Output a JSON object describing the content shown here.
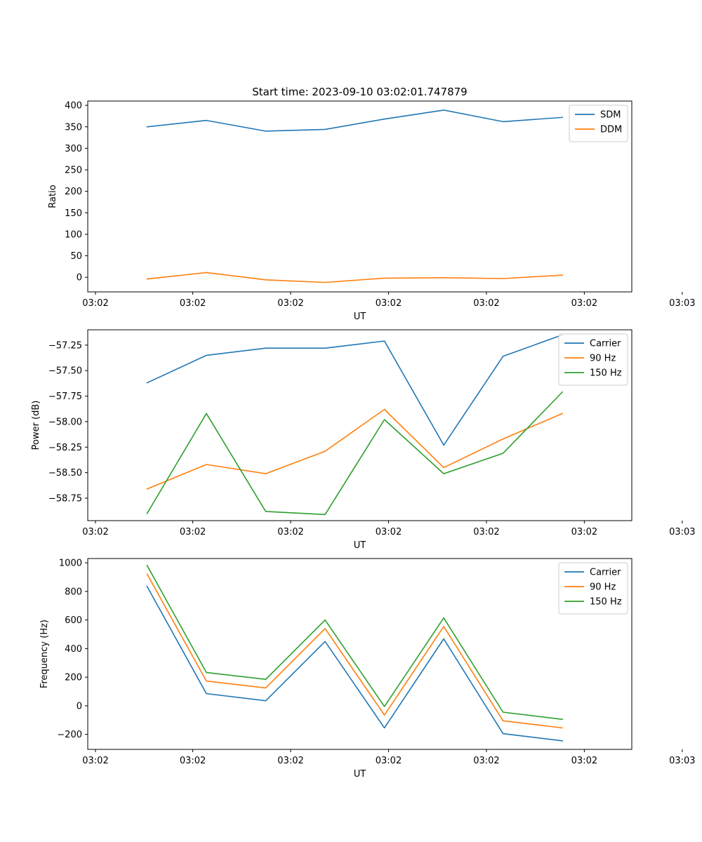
{
  "chart_data": [
    {
      "type": "line",
      "title": "Start time: 2023-09-10 03:02:01.747879",
      "xlabel": "UT",
      "ylabel": "Ratio",
      "xlim": [
        0,
        9.17
      ],
      "ylim": [
        -34,
        410
      ],
      "x": [
        1,
        2,
        3,
        4,
        5,
        6,
        7,
        8
      ],
      "xticks": [
        0.13,
        1.77,
        3.42,
        5.07,
        6.72,
        8.37,
        10.02
      ],
      "xtick_labels": [
        "03:02",
        "03:02",
        "03:02",
        "03:02",
        "03:02",
        "03:02",
        "03:03"
      ],
      "yticks": [
        0,
        50,
        100,
        150,
        200,
        250,
        300,
        350,
        400
      ],
      "ytick_labels": [
        "0",
        "50",
        "100",
        "150",
        "200",
        "250",
        "300",
        "350",
        "400"
      ],
      "legend": "upper-right",
      "series": [
        {
          "name": "SDM",
          "color": "#1f77b4",
          "values": [
            350,
            365,
            340,
            344,
            368,
            389,
            362,
            372
          ]
        },
        {
          "name": "DDM",
          "color": "#ff7f0e",
          "values": [
            -4,
            11,
            -6,
            -12,
            -2,
            -1,
            -3,
            5
          ]
        }
      ]
    },
    {
      "type": "line",
      "title": "",
      "xlabel": "UT",
      "ylabel": "Power (dB)",
      "xlim": [
        0,
        9.17
      ],
      "ylim": [
        -58.97,
        -57.1
      ],
      "x": [
        1,
        2,
        3,
        4,
        5,
        6,
        7,
        8
      ],
      "xticks": [
        0.13,
        1.77,
        3.42,
        5.07,
        6.72,
        8.37,
        10.02
      ],
      "xtick_labels": [
        "03:02",
        "03:02",
        "03:02",
        "03:02",
        "03:02",
        "03:02",
        "03:03"
      ],
      "yticks": [
        -58.75,
        -58.5,
        -58.25,
        -58.0,
        -57.75,
        -57.5,
        -57.25
      ],
      "ytick_labels": [
        "−58.75",
        "−58.50",
        "−58.25",
        "−58.00",
        "−57.75",
        "−57.50",
        "−57.25"
      ],
      "legend": "upper-right",
      "series": [
        {
          "name": "Carrier",
          "color": "#1f77b4",
          "values": [
            -57.62,
            -57.35,
            -57.28,
            -57.28,
            -57.21,
            -58.23,
            -57.36,
            -57.15
          ]
        },
        {
          "name": "90 Hz",
          "color": "#ff7f0e",
          "values": [
            -58.66,
            -58.42,
            -58.51,
            -58.29,
            -57.88,
            -58.45,
            -58.17,
            -57.92
          ]
        },
        {
          "name": "150 Hz",
          "color": "#2ca02c",
          "values": [
            -58.9,
            -57.92,
            -58.88,
            -58.91,
            -57.98,
            -58.51,
            -58.31,
            -57.71
          ]
        }
      ]
    },
    {
      "type": "line",
      "title": "",
      "xlabel": "UT",
      "ylabel": "Frequency (Hz)",
      "xlim": [
        0,
        9.17
      ],
      "ylim": [
        -305,
        1030
      ],
      "x": [
        1,
        2,
        3,
        4,
        5,
        6,
        7,
        8
      ],
      "xticks": [
        0.13,
        1.77,
        3.42,
        5.07,
        6.72,
        8.37,
        10.02
      ],
      "xtick_labels": [
        "03:02",
        "03:02",
        "03:02",
        "03:02",
        "03:02",
        "03:02",
        "03:03"
      ],
      "yticks": [
        -200,
        0,
        200,
        400,
        600,
        800,
        1000
      ],
      "ytick_labels": [
        "−200",
        "0",
        "200",
        "400",
        "600",
        "800",
        "1000"
      ],
      "legend": "upper-right",
      "series": [
        {
          "name": "Carrier",
          "color": "#1f77b4",
          "values": [
            835,
            85,
            35,
            450,
            -155,
            468,
            -195,
            -245
          ]
        },
        {
          "name": "90 Hz",
          "color": "#ff7f0e",
          "values": [
            922,
            173,
            125,
            540,
            -65,
            555,
            -105,
            -155
          ]
        },
        {
          "name": "150 Hz",
          "color": "#2ca02c",
          "values": [
            982,
            233,
            185,
            600,
            -5,
            615,
            -45,
            -95
          ]
        }
      ]
    }
  ]
}
